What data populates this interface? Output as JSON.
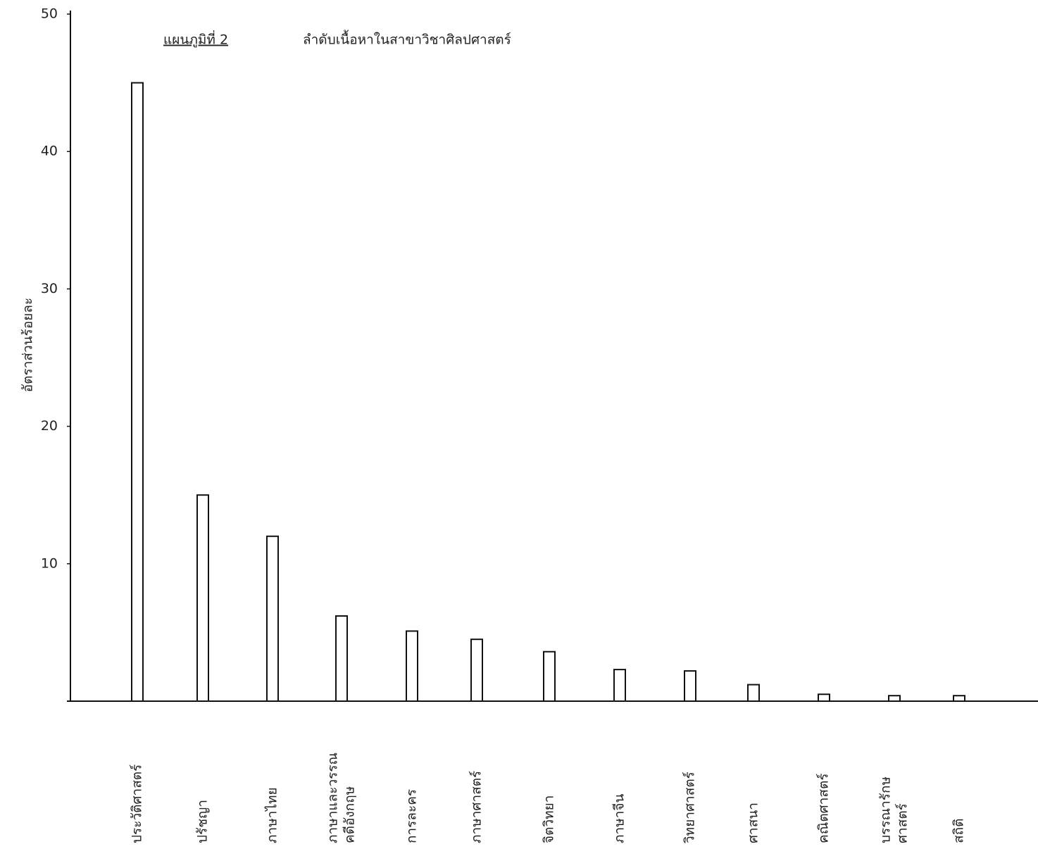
{
  "chart_data": {
    "type": "bar",
    "figure_label": "แผนภูมิที่  2",
    "title": "ลำดับเนื้อหาในสาขาวิชาศิลปศาสตร์",
    "y_label": "อัตราส่วนร้อยละ",
    "categories": [
      [
        "ประวัติศาสตร์"
      ],
      [
        "ปรัชญา"
      ],
      [
        "ภาษาไทย"
      ],
      [
        "ภาษาและวรรณ",
        "คดีอังกฤษ"
      ],
      [
        "การละคร"
      ],
      [
        "ภาษาศาสตร์"
      ],
      [
        "จิตวิทยา"
      ],
      [
        "ภาษาจีน"
      ],
      [
        "วิทยาศาสตร์"
      ],
      [
        "ศาสนา"
      ],
      [
        "คณิตศาสตร์"
      ],
      [
        "บรรณารักษ",
        "ศาสตร์"
      ],
      [
        "สถิติ"
      ]
    ],
    "values": [
      45,
      15,
      12,
      6.2,
      5.1,
      4.5,
      3.6,
      2.3,
      2.2,
      1.2,
      0.5,
      0.4,
      0.4
    ],
    "color": "#ffffff",
    "ylim": [
      0,
      50
    ],
    "yticks": [
      10,
      20,
      30,
      40,
      50
    ]
  }
}
